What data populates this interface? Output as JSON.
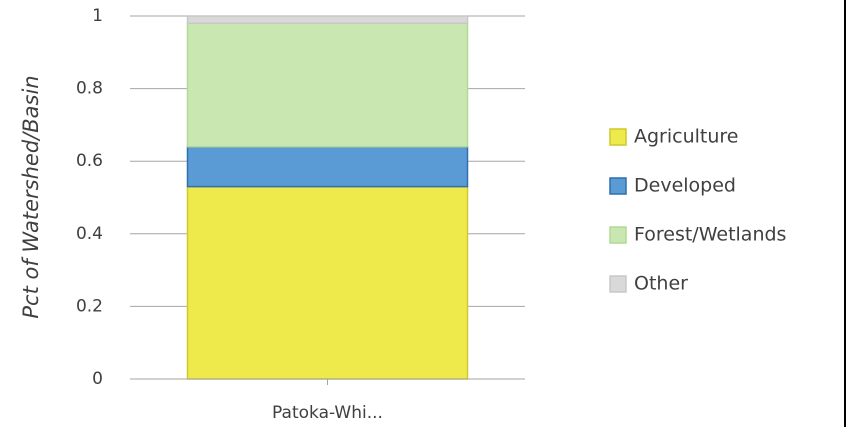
{
  "chart_data": {
    "type": "stacked_bar",
    "ylabel": "Pct of Watershed/Basin",
    "categories": [
      "Patoka-Whi..."
    ],
    "series": [
      {
        "name": "Agriculture",
        "color": "#eeea4c",
        "stroke": "#cfc92a",
        "values": [
          0.53
        ]
      },
      {
        "name": "Developed",
        "color": "#5b9bd5",
        "stroke": "#2e6fae",
        "values": [
          0.11
        ]
      },
      {
        "name": "Forest/Wetlands",
        "color": "#c9e7b0",
        "stroke": "#b2d995",
        "values": [
          0.34
        ]
      },
      {
        "name": "Other",
        "color": "#d9d9d9",
        "stroke": "#c8c8c8",
        "values": [
          0.02
        ]
      }
    ],
    "ylim": [
      0,
      1
    ],
    "yticks": [
      0,
      0.2,
      0.4,
      0.6,
      0.8,
      1
    ],
    "grid": true,
    "legend": "right"
  }
}
